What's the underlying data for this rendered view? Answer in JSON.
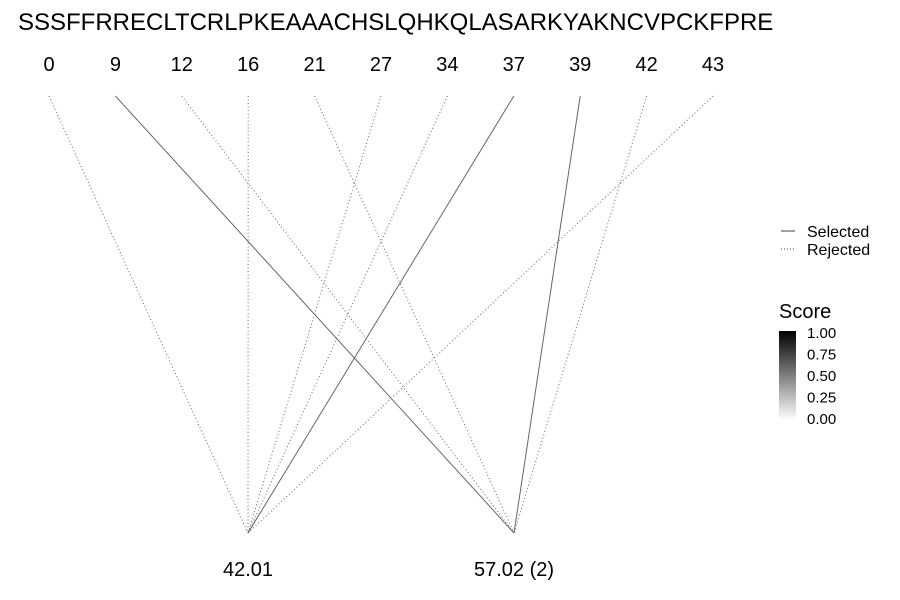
{
  "sequence": "SSSFFRRECLTCRLPKEAAACHSLQHKQLASARKYAKNCVPCKFPRE",
  "positions": [
    {
      "label": "0",
      "value": 0
    },
    {
      "label": "9",
      "value": 9
    },
    {
      "label": "12",
      "value": 12
    },
    {
      "label": "16",
      "value": 16
    },
    {
      "label": "21",
      "value": 21
    },
    {
      "label": "27",
      "value": 27
    },
    {
      "label": "34",
      "value": 34
    },
    {
      "label": "37",
      "value": 37
    },
    {
      "label": "39",
      "value": 39
    },
    {
      "label": "42",
      "value": 42
    },
    {
      "label": "43",
      "value": 43
    }
  ],
  "masses": [
    {
      "label": "42.01"
    },
    {
      "label": "57.02 (2)"
    }
  ],
  "links": [
    {
      "position": 0,
      "mass": 0,
      "status": "rejected"
    },
    {
      "position": 9,
      "mass": 1,
      "status": "selected"
    },
    {
      "position": 12,
      "mass": 1,
      "status": "rejected"
    },
    {
      "position": 16,
      "mass": 0,
      "status": "rejected"
    },
    {
      "position": 21,
      "mass": 1,
      "status": "rejected"
    },
    {
      "position": 27,
      "mass": 0,
      "status": "rejected"
    },
    {
      "position": 34,
      "mass": 0,
      "status": "rejected"
    },
    {
      "position": 37,
      "mass": 0,
      "status": "selected"
    },
    {
      "position": 39,
      "mass": 1,
      "status": "selected"
    },
    {
      "position": 42,
      "mass": 1,
      "status": "rejected"
    },
    {
      "position": 43,
      "mass": 0,
      "status": "rejected"
    }
  ],
  "legend": {
    "selected_label": "Selected",
    "rejected_label": "Rejected"
  },
  "score": {
    "title": "Score",
    "ticks": [
      "1.00",
      "0.75",
      "0.50",
      "0.25",
      "0.00"
    ],
    "color_high": "#000000",
    "color_low": "#ffffff"
  },
  "line_color": "#666666"
}
